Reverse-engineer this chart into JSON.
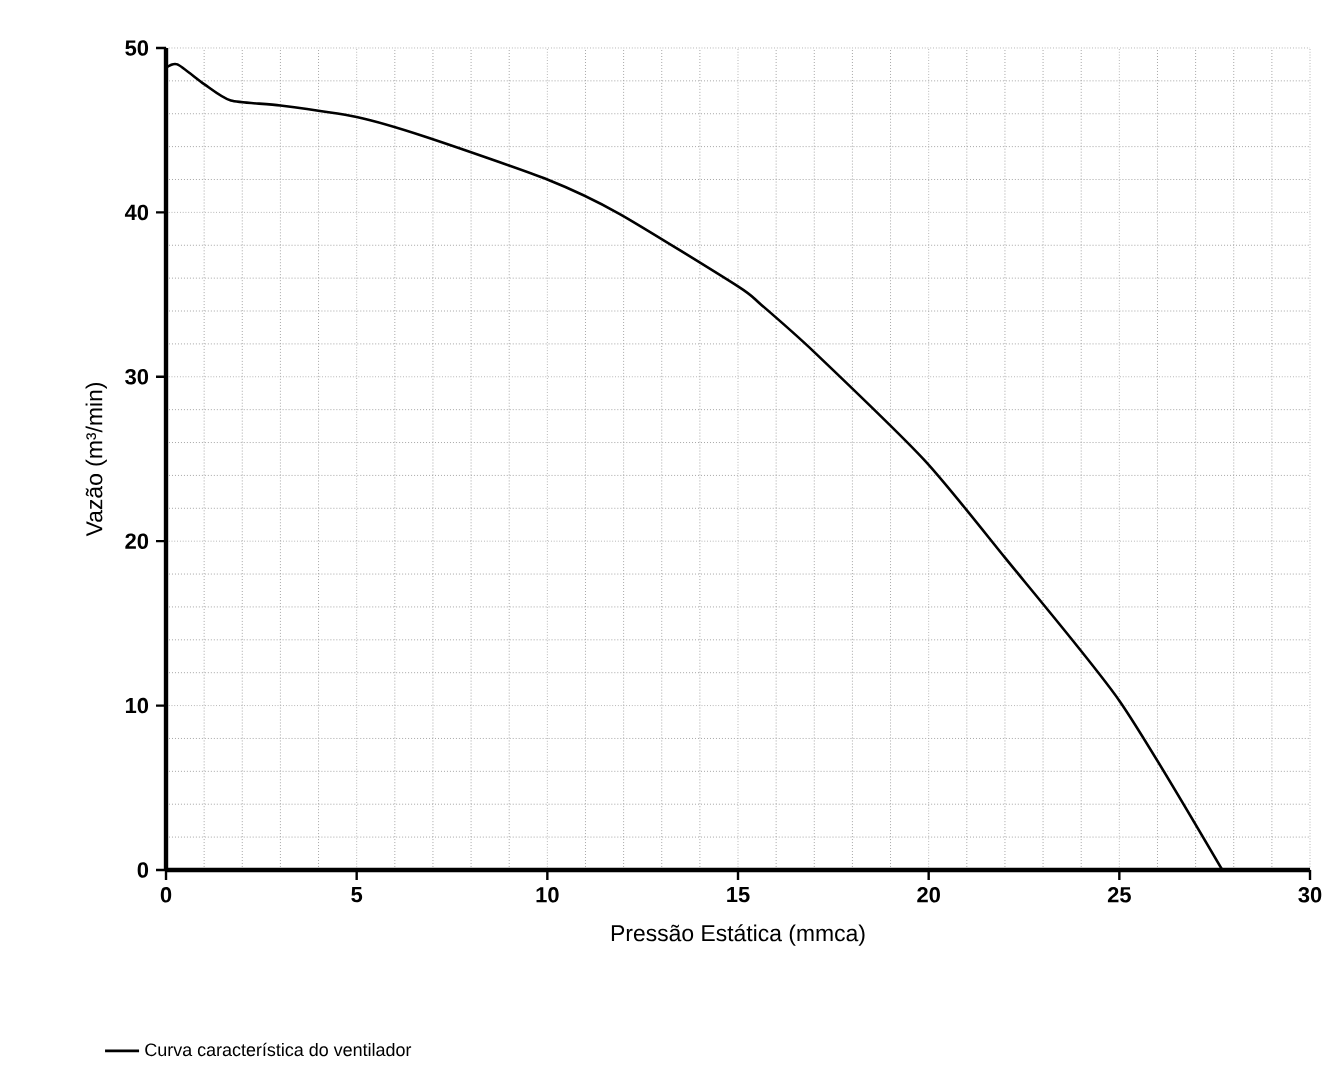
{
  "chart_data": {
    "type": "line",
    "xlabel": "Pressão Estática (mmca)",
    "ylabel": "Vazão (m³/min)",
    "xlim": [
      0,
      30
    ],
    "ylim": [
      0,
      50
    ],
    "xticks": [
      0,
      5,
      10,
      15,
      20,
      25,
      30
    ],
    "yticks": [
      0,
      10,
      20,
      30,
      40,
      50
    ],
    "grid": true,
    "legend": "bottom",
    "marker": "none",
    "line_style": "solid",
    "series": [
      {
        "name": "Curva característica do ventilador",
        "color": "#000000",
        "x": [
          0,
          0.3,
          1,
          1.7,
          3,
          5,
          6.8,
          10,
          11.9,
          15,
          15.6,
          17,
          19.9,
          22,
          25,
          27.7
        ],
        "values": [
          48.8,
          49,
          47.8,
          46.8,
          46.5,
          45.8,
          44.6,
          42,
          39.9,
          35.5,
          34.4,
          31.5,
          24.9,
          19,
          10.3,
          0
        ]
      }
    ]
  }
}
